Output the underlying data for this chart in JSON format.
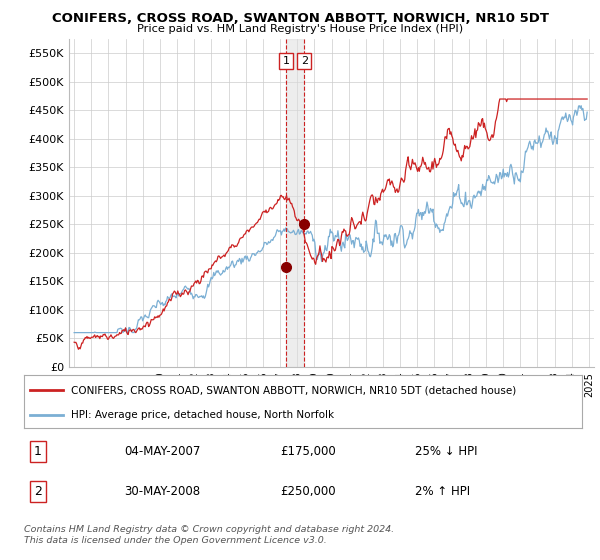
{
  "title": "CONIFERS, CROSS ROAD, SWANTON ABBOTT, NORWICH, NR10 5DT",
  "subtitle": "Price paid vs. HM Land Registry's House Price Index (HPI)",
  "ylabel_ticks": [
    "£0",
    "£50K",
    "£100K",
    "£150K",
    "£200K",
    "£250K",
    "£300K",
    "£350K",
    "£400K",
    "£450K",
    "£500K",
    "£550K"
  ],
  "ytick_values": [
    0,
    50000,
    100000,
    150000,
    200000,
    250000,
    300000,
    350000,
    400000,
    450000,
    500000,
    550000
  ],
  "ylim": [
    0,
    575000
  ],
  "xlim_start": 1994.7,
  "xlim_end": 2025.3,
  "hpi_color": "#7bafd4",
  "price_color": "#cc2222",
  "sale1_date": 2007.35,
  "sale1_price": 175000,
  "sale2_date": 2008.42,
  "sale2_price": 250000,
  "legend_line1": "CONIFERS, CROSS ROAD, SWANTON ABBOTT, NORWICH, NR10 5DT (detached house)",
  "legend_line2": "HPI: Average price, detached house, North Norfolk",
  "table_row1": [
    "1",
    "04-MAY-2007",
    "£175,000",
    "25% ↓ HPI"
  ],
  "table_row2": [
    "2",
    "30-MAY-2008",
    "£250,000",
    "2% ↑ HPI"
  ],
  "footer": "Contains HM Land Registry data © Crown copyright and database right 2024.\nThis data is licensed under the Open Government Licence v3.0.",
  "vline_x1": 2007.35,
  "vline_x2": 2008.42,
  "background_color": "#ffffff",
  "grid_color": "#cccccc"
}
